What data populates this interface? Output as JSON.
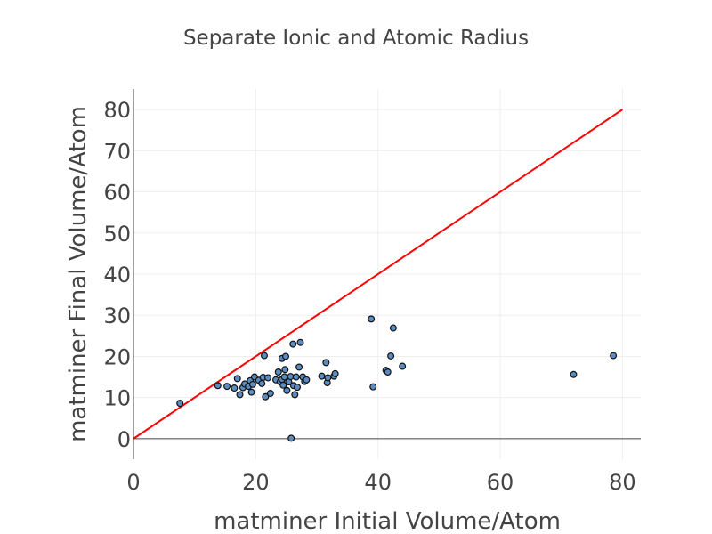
{
  "chart_data": {
    "type": "scatter",
    "title": "Separate Ionic and Atomic Radius",
    "xlabel": "matminer Initial Volume/Atom",
    "ylabel": "matminer Final Volume/Atom",
    "xlim": [
      0,
      83
    ],
    "ylim": [
      -5,
      85
    ],
    "x_ticks": [
      0,
      20,
      40,
      60,
      80
    ],
    "y_ticks": [
      0,
      10,
      20,
      30,
      40,
      50,
      60,
      70,
      80
    ],
    "grid": true,
    "legend": "none",
    "colors": {
      "points": "#5b8cc0",
      "point_outline": "#111111",
      "line": "#ff0000"
    },
    "series": [
      {
        "type": "scatter",
        "points": [
          {
            "x": 7.6,
            "y": 8.6
          },
          {
            "x": 13.8,
            "y": 12.9
          },
          {
            "x": 15.3,
            "y": 12.7
          },
          {
            "x": 16.5,
            "y": 12.3
          },
          {
            "x": 17.0,
            "y": 14.6
          },
          {
            "x": 17.4,
            "y": 10.7
          },
          {
            "x": 17.9,
            "y": 12.4
          },
          {
            "x": 18.2,
            "y": 13.3
          },
          {
            "x": 18.8,
            "y": 12.7
          },
          {
            "x": 19.1,
            "y": 14.1
          },
          {
            "x": 19.3,
            "y": 11.3
          },
          {
            "x": 19.5,
            "y": 13.2
          },
          {
            "x": 19.8,
            "y": 15.0
          },
          {
            "x": 20.5,
            "y": 14.2
          },
          {
            "x": 21.0,
            "y": 13.4
          },
          {
            "x": 21.2,
            "y": 14.9
          },
          {
            "x": 21.4,
            "y": 20.2
          },
          {
            "x": 21.6,
            "y": 10.2
          },
          {
            "x": 22.0,
            "y": 14.8
          },
          {
            "x": 22.4,
            "y": 11.0
          },
          {
            "x": 23.3,
            "y": 14.3
          },
          {
            "x": 23.7,
            "y": 16.2
          },
          {
            "x": 24.0,
            "y": 13.8
          },
          {
            "x": 24.3,
            "y": 14.4
          },
          {
            "x": 24.3,
            "y": 19.5
          },
          {
            "x": 24.5,
            "y": 13.0
          },
          {
            "x": 24.7,
            "y": 15.0
          },
          {
            "x": 24.8,
            "y": 16.8
          },
          {
            "x": 25.1,
            "y": 11.7
          },
          {
            "x": 24.9,
            "y": 20.0
          },
          {
            "x": 25.4,
            "y": 13.8
          },
          {
            "x": 25.7,
            "y": 15.1
          },
          {
            "x": 25.8,
            "y": 0.1
          },
          {
            "x": 26.1,
            "y": 23.0
          },
          {
            "x": 26.2,
            "y": 12.9
          },
          {
            "x": 26.4,
            "y": 10.7
          },
          {
            "x": 26.6,
            "y": 15.0
          },
          {
            "x": 26.8,
            "y": 12.5
          },
          {
            "x": 27.1,
            "y": 17.4
          },
          {
            "x": 27.3,
            "y": 23.4
          },
          {
            "x": 27.7,
            "y": 15.0
          },
          {
            "x": 28.0,
            "y": 13.9
          },
          {
            "x": 28.3,
            "y": 14.3
          },
          {
            "x": 30.8,
            "y": 15.2
          },
          {
            "x": 31.5,
            "y": 18.5
          },
          {
            "x": 31.7,
            "y": 13.6
          },
          {
            "x": 31.8,
            "y": 14.8
          },
          {
            "x": 32.8,
            "y": 15.2
          },
          {
            "x": 33.0,
            "y": 15.8
          },
          {
            "x": 38.9,
            "y": 29.1
          },
          {
            "x": 39.2,
            "y": 12.6
          },
          {
            "x": 41.3,
            "y": 16.6
          },
          {
            "x": 41.6,
            "y": 16.2
          },
          {
            "x": 42.1,
            "y": 20.1
          },
          {
            "x": 42.5,
            "y": 26.9
          },
          {
            "x": 44.0,
            "y": 17.6
          },
          {
            "x": 72.0,
            "y": 15.6
          },
          {
            "x": 78.5,
            "y": 20.2
          }
        ]
      },
      {
        "type": "line",
        "x": [
          0,
          80
        ],
        "y": [
          0,
          80
        ]
      }
    ]
  }
}
